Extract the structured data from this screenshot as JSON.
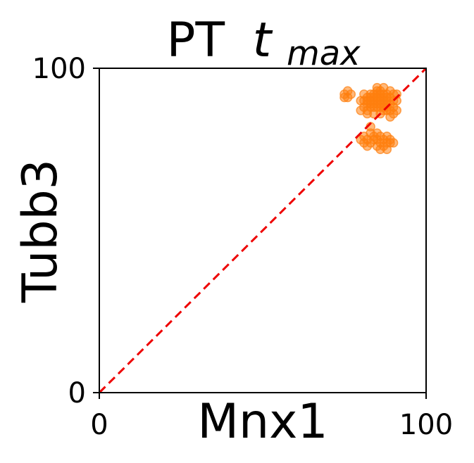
{
  "chart_data": {
    "type": "scatter",
    "title": {
      "main": "PT",
      "var": "t",
      "sub": "max"
    },
    "xlabel": "Mnx1",
    "ylabel": "Tubb3",
    "xlim": [
      0,
      100
    ],
    "ylim": [
      0,
      100
    ],
    "xticks": [
      "0",
      "100"
    ],
    "yticks": [
      "0",
      "100"
    ],
    "grid": false,
    "legend": false,
    "reference_line": {
      "from": [
        0,
        0
      ],
      "to": [
        100,
        100
      ],
      "style": "dashed",
      "color": "#ee0000"
    },
    "point_color": "#ff7f0e",
    "series": [
      {
        "points": [
          [
            81,
            90
          ],
          [
            82,
            91
          ],
          [
            83,
            89
          ],
          [
            84,
            90
          ],
          [
            85,
            92
          ],
          [
            86,
            91
          ],
          [
            87,
            89
          ],
          [
            88,
            90
          ],
          [
            89,
            91
          ],
          [
            90,
            88
          ],
          [
            81,
            88
          ],
          [
            82,
            87
          ],
          [
            83,
            92
          ],
          [
            84,
            88
          ],
          [
            85,
            90
          ],
          [
            86,
            88
          ],
          [
            87,
            92
          ],
          [
            88,
            88
          ],
          [
            89,
            89
          ],
          [
            90,
            90
          ],
          [
            82,
            90
          ],
          [
            83,
            91
          ],
          [
            84,
            92
          ],
          [
            85,
            88
          ],
          [
            86,
            90
          ],
          [
            87,
            91
          ],
          [
            88,
            92
          ],
          [
            89,
            87
          ],
          [
            90,
            92
          ],
          [
            91,
            90
          ],
          [
            80,
            90
          ],
          [
            81,
            92
          ],
          [
            82,
            89
          ],
          [
            83,
            88
          ],
          [
            84,
            91
          ],
          [
            85,
            89
          ],
          [
            86,
            92
          ],
          [
            87,
            90
          ],
          [
            88,
            89
          ],
          [
            89,
            93
          ],
          [
            85,
            93
          ],
          [
            86,
            93
          ],
          [
            87,
            87
          ],
          [
            88,
            91
          ],
          [
            84,
            89
          ],
          [
            83,
            90
          ],
          [
            86,
            89
          ],
          [
            87,
            88
          ],
          [
            88,
            87
          ],
          [
            85,
            91
          ],
          [
            85,
            94
          ],
          [
            87,
            94
          ],
          [
            89,
            85
          ],
          [
            84,
            86
          ],
          [
            91,
            87
          ],
          [
            90,
            86
          ],
          [
            82,
            86
          ],
          [
            80,
            87
          ],
          [
            91,
            92
          ],
          [
            86,
            86
          ],
          [
            75,
            92
          ],
          [
            76,
            91
          ],
          [
            77,
            92
          ],
          [
            76,
            93
          ],
          [
            75,
            91
          ],
          [
            81,
            79
          ],
          [
            82,
            78
          ],
          [
            83,
            77
          ],
          [
            84,
            79
          ],
          [
            85,
            78
          ],
          [
            86,
            77
          ],
          [
            87,
            78
          ],
          [
            88,
            79
          ],
          [
            89,
            77
          ],
          [
            82,
            76
          ],
          [
            83,
            80
          ],
          [
            85,
            76
          ],
          [
            86,
            79
          ],
          [
            87,
            76
          ],
          [
            88,
            77
          ],
          [
            84,
            78
          ],
          [
            81,
            77
          ],
          [
            89,
            78
          ],
          [
            88,
            75
          ],
          [
            85,
            80
          ],
          [
            83,
            82
          ],
          [
            86,
            75
          ],
          [
            80,
            78
          ],
          [
            90,
            77
          ]
        ]
      }
    ]
  }
}
